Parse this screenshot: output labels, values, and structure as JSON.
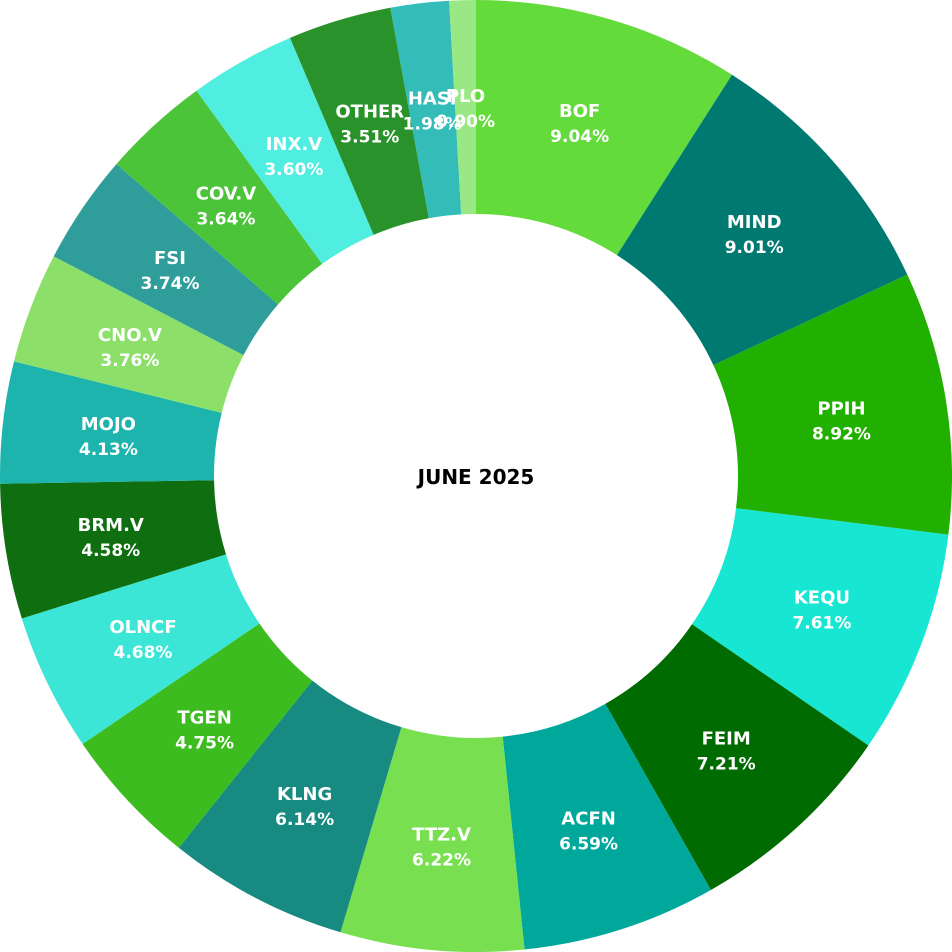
{
  "chart_data": {
    "type": "pie",
    "variant": "donut",
    "center_label": "JUNE  2025",
    "slices": [
      {
        "label": "BOF",
        "value": 9.04,
        "value_label": "9.04%",
        "color": "#62db3b"
      },
      {
        "label": "MIND",
        "value": 9.01,
        "value_label": "9.01%",
        "color": "#007a70"
      },
      {
        "label": "PPIH",
        "value": 8.92,
        "value_label": "8.92%",
        "color": "#22b000"
      },
      {
        "label": "KEQU",
        "value": 7.61,
        "value_label": "7.61%",
        "color": "#17e6d2"
      },
      {
        "label": "FEIM",
        "value": 7.21,
        "value_label": "7.21%",
        "color": "#006b00"
      },
      {
        "label": "ACFN",
        "value": 6.59,
        "value_label": "6.59%",
        "color": "#00a89c"
      },
      {
        "label": "TTZ.V",
        "value": 6.22,
        "value_label": "6.22%",
        "color": "#78e050"
      },
      {
        "label": "KLNG",
        "value": 6.14,
        "value_label": "6.14%",
        "color": "#178a82"
      },
      {
        "label": "TGEN",
        "value": 4.75,
        "value_label": "4.75%",
        "color": "#3cbc1e"
      },
      {
        "label": "OLNCF",
        "value": 4.68,
        "value_label": "4.68%",
        "color": "#3ce6d6"
      },
      {
        "label": "BRM.V",
        "value": 4.58,
        "value_label": "4.58%",
        "color": "#0f6e0f"
      },
      {
        "label": "MOJO",
        "value": 4.13,
        "value_label": "4.13%",
        "color": "#1cb4ac"
      },
      {
        "label": "CNO.V",
        "value": 3.76,
        "value_label": "3.76%",
        "color": "#8ce06a"
      },
      {
        "label": "FSI",
        "value": 3.74,
        "value_label": "3.74%",
        "color": "#2f9e9a"
      },
      {
        "label": "COV.V",
        "value": 3.64,
        "value_label": "3.64%",
        "color": "#4cc43a"
      },
      {
        "label": "INX.V",
        "value": 3.6,
        "value_label": "3.60%",
        "color": "#50eee0"
      },
      {
        "label": "OTHER",
        "value": 3.51,
        "value_label": "3.51%",
        "color": "#2a922a"
      },
      {
        "label": "HASI",
        "value": 1.98,
        "value_label": "1.98%",
        "color": "#33bcb8"
      },
      {
        "label": "PLO",
        "value": 0.9,
        "value_label": "0.90%",
        "color": "#9ae884"
      }
    ]
  }
}
